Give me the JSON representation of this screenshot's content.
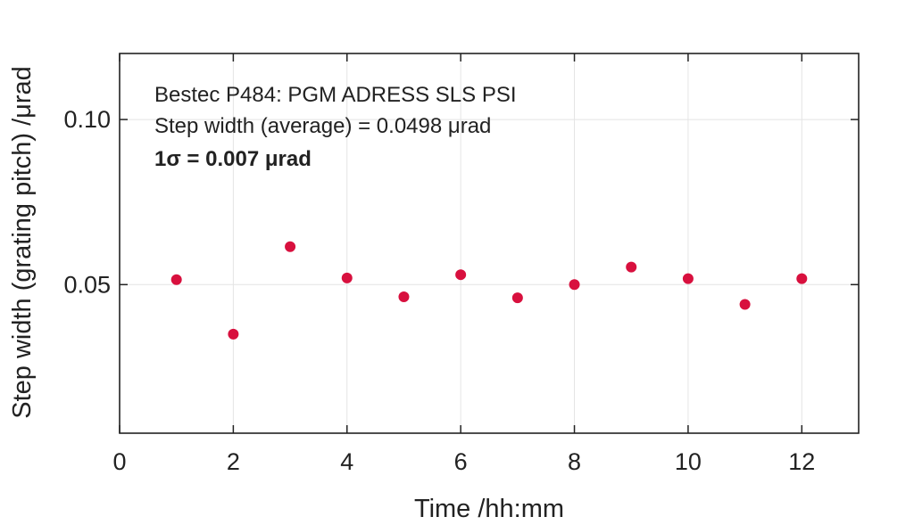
{
  "chart_data": {
    "type": "scatter",
    "annotations": [
      "Bestec P484: PGM ADRESS SLS PSI",
      "Step width (average) = 0.0498 μrad",
      "1σ = 0.007 μrad"
    ],
    "xlabel": "Time /hh:mm",
    "ylabel": "Step width (grating pitch) /μrad",
    "xlim": [
      0,
      13
    ],
    "ylim": [
      0.005,
      0.12
    ],
    "x_ticks": [
      "0",
      "2",
      "4",
      "6",
      "8",
      "10",
      "12"
    ],
    "y_ticks": [
      "0.05",
      "0.10"
    ],
    "grid": true,
    "marker_color": "#d8103e",
    "series": [
      {
        "x": [
          1,
          2,
          3,
          4,
          5,
          6,
          7,
          8,
          9,
          10,
          11,
          12
        ],
        "y": [
          0.0515,
          0.035,
          0.0615,
          0.052,
          0.0463,
          0.053,
          0.046,
          0.05,
          0.0553,
          0.0518,
          0.044,
          0.0518
        ]
      }
    ]
  }
}
